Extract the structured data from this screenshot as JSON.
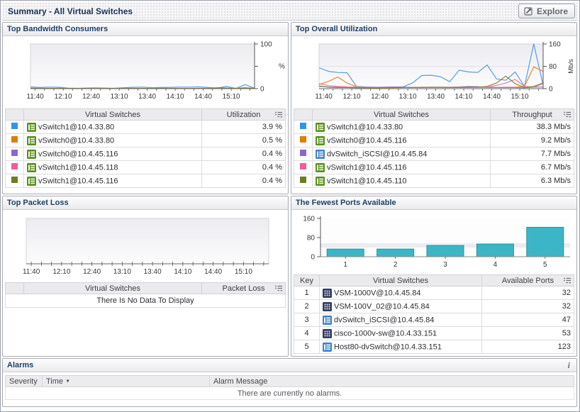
{
  "header": {
    "title": "Summary - All Virtual Switches",
    "explore_label": "Explore"
  },
  "icons": {
    "sort_desc": "▼",
    "info": "i"
  },
  "panels": {
    "bandwidth": {
      "title": "Top Bandwidth Consumers",
      "columns": {
        "name": "Virtual Switches",
        "value": "Utilization"
      },
      "rows": [
        {
          "swatch": "#2e96e4",
          "icon": "vs-green",
          "name": "vSwitch1@10.4.33.80",
          "value": "3.9 %"
        },
        {
          "swatch": "#e07d00",
          "icon": "vs-green",
          "name": "vSwitch0@10.4.33.80",
          "value": "0.5 %"
        },
        {
          "swatch": "#8a68ce",
          "icon": "vs-green",
          "name": "vSwitch0@10.4.45.116",
          "value": "0.4 %"
        },
        {
          "swatch": "#f25d9e",
          "icon": "vs-green",
          "name": "vSwitch1@10.4.45.118",
          "value": "0.4 %"
        },
        {
          "swatch": "#6f7d1f",
          "icon": "vs-green",
          "name": "vSwitch1@10.4.45.116",
          "value": "0.4 %"
        }
      ]
    },
    "utilization": {
      "title": "Top Overall Utilization",
      "columns": {
        "name": "Virtual Switches",
        "value": "Throughput"
      },
      "rows": [
        {
          "swatch": "#2e96e4",
          "icon": "vs-green",
          "name": "vSwitch1@10.4.33.80",
          "value": "38.3 Mb/s"
        },
        {
          "swatch": "#e07d00",
          "icon": "vs-green",
          "name": "vSwitch0@10.4.45.116",
          "value": "9.2 Mb/s"
        },
        {
          "swatch": "#8a68ce",
          "icon": "vs-blue",
          "name": "dvSwitch_iSCSI@10.4.45.84",
          "value": "7.7 Mb/s"
        },
        {
          "swatch": "#f25d9e",
          "icon": "vs-green",
          "name": "vSwitch1@10.4.45.116",
          "value": "6.7 Mb/s"
        },
        {
          "swatch": "#6f7d1f",
          "icon": "vs-green",
          "name": "vSwitch1@10.4.45.110",
          "value": "6.3 Mb/s"
        }
      ]
    },
    "packetloss": {
      "title": "Top Packet Loss",
      "columns": {
        "name": "Virtual Switches",
        "value": "Packet Loss"
      },
      "empty_message": "There Is No Data To Display"
    },
    "ports": {
      "title": "The Fewest Ports Available",
      "columns": {
        "key": "Key",
        "name": "Virtual Switches",
        "value": "Available Ports"
      },
      "rows": [
        {
          "key": "1",
          "icon": "vs-dark",
          "name": "VSM-1000V@10.4.45.84",
          "value": "32"
        },
        {
          "key": "2",
          "icon": "vs-dark",
          "name": "VSM-100V_02@10.4.45.84",
          "value": "32"
        },
        {
          "key": "3",
          "icon": "vs-blue",
          "name": "dvSwitch_iSCSI@10.4.45.84",
          "value": "47"
        },
        {
          "key": "4",
          "icon": "vs-dark",
          "name": "cisco-1000v-sw@10.4.33.151",
          "value": "53"
        },
        {
          "key": "5",
          "icon": "vs-blue",
          "name": "Host80-dvSwitch@10.4.33.151",
          "value": "123"
        }
      ]
    },
    "alarms": {
      "title": "Alarms",
      "columns": {
        "severity": "Severity",
        "time": "Time",
        "message": "Alarm Message"
      },
      "empty_message": "There are currently no alarms."
    }
  },
  "chart_data": [
    {
      "id": "bandwidth",
      "type": "line",
      "title": "Top Bandwidth Consumers",
      "ylabel": "%",
      "ylim": [
        0,
        100
      ],
      "yticks": [
        0,
        50,
        100
      ],
      "ytick_labels": [
        "0",
        "",
        "100"
      ],
      "x_labels": [
        "11:40",
        "12:10",
        "12:40",
        "13:10",
        "13:40",
        "14:10",
        "14:40",
        "15:10"
      ],
      "series": [
        {
          "name": "vSwitch1@10.4.33.80",
          "color": "#4f97e0",
          "values": [
            4,
            2.5,
            3.5,
            3,
            1.2,
            0.8,
            0.8,
            0.8,
            0.8,
            1,
            2,
            3,
            3.5,
            2,
            2.5,
            3,
            3.5,
            3.5,
            4,
            2.5,
            1.2,
            5,
            0.5,
            9,
            1
          ]
        },
        {
          "name": "vSwitch0@10.4.33.80",
          "color": "#e8821e",
          "values": [
            1,
            0.8,
            0.6,
            0.5,
            0.5,
            0.5,
            0.5,
            0.5,
            0.5,
            0.5,
            0.5,
            0.5,
            0.5,
            0.5,
            0.5,
            0.5,
            0.5,
            0.5,
            0.5,
            0.5,
            0.5,
            0.6,
            0.5,
            1.5,
            0.8
          ]
        },
        {
          "name": "vSwitch0@10.4.45.116",
          "color": "#9177cd",
          "values": [
            0.6,
            0.5,
            0.4,
            0.4,
            0.4,
            0.4,
            0.4,
            0.4,
            0.4,
            0.4,
            0.4,
            0.4,
            0.4,
            0.4,
            0.4,
            0.4,
            0.4,
            0.4,
            0.4,
            0.4,
            0.4,
            0.4,
            0.4,
            0.5,
            0.4
          ]
        },
        {
          "name": "vSwitch1@10.4.45.118",
          "color": "#ef6f9e",
          "values": [
            0.8,
            0.5,
            0.4,
            0.4,
            0.4,
            0.4,
            1.5,
            1.8,
            1.4,
            0.4,
            0.4,
            0.4,
            0.4,
            0.4,
            0.4,
            0.4,
            0.4,
            0.4,
            0.4,
            0.4,
            0.4,
            0.8,
            1,
            0.5,
            0.4
          ]
        },
        {
          "name": "vSwitch1@10.4.45.116",
          "color": "#7c8430",
          "values": [
            0.5,
            0.4,
            0.4,
            0.4,
            0.4,
            0.4,
            0.4,
            0.4,
            0.4,
            0.4,
            0.4,
            0.4,
            0.4,
            0.4,
            0.4,
            0.4,
            0.4,
            0.4,
            0.4,
            0.5,
            2,
            1.5,
            0.4,
            2,
            0.5
          ]
        }
      ]
    },
    {
      "id": "utilization",
      "type": "line",
      "title": "Top Overall Utilization",
      "ylabel": "Mb/s",
      "ylim": [
        0,
        160
      ],
      "yticks": [
        0,
        80,
        160
      ],
      "ytick_labels": [
        "0",
        "80",
        "160"
      ],
      "x_labels": [
        "11:40",
        "12:10",
        "12:40",
        "13:10",
        "13:40",
        "14:10",
        "14:40",
        "15:10"
      ],
      "series": [
        {
          "name": "vSwitch1@10.4.33.80",
          "color": "#4f97e0",
          "values": [
            75,
            62,
            58,
            57,
            8,
            6,
            5,
            5,
            6,
            6,
            20,
            47,
            48,
            43,
            25,
            66,
            60,
            58,
            85,
            35,
            30,
            60,
            8,
            160,
            12
          ]
        },
        {
          "name": "vSwitch0@10.4.45.116",
          "color": "#e8821e",
          "values": [
            15,
            26,
            42,
            20,
            6,
            4,
            3,
            3,
            3,
            4,
            4,
            4,
            5,
            4,
            4,
            4,
            4,
            5,
            4,
            4,
            5,
            5,
            8,
            78,
            62
          ]
        },
        {
          "name": "dvSwitch_iSCSI@10.4.45.84",
          "color": "#9177cd",
          "values": [
            8,
            6,
            5,
            4,
            4,
            4,
            4,
            5,
            5,
            5,
            4,
            4,
            5,
            5,
            5,
            6,
            8,
            7,
            5,
            4,
            4,
            4,
            3,
            5,
            6
          ]
        },
        {
          "name": "vSwitch1@10.4.45.116",
          "color": "#ef6f9e",
          "values": [
            18,
            11,
            8,
            6,
            5,
            4,
            4,
            4,
            4,
            4,
            4,
            5,
            5,
            4,
            4,
            5,
            5,
            5,
            5,
            12,
            20,
            33,
            8,
            5,
            18
          ]
        },
        {
          "name": "vSwitch1@10.4.45.110",
          "color": "#7c8430",
          "values": [
            10,
            5,
            4,
            4,
            3,
            3,
            3,
            4,
            4,
            4,
            4,
            4,
            5,
            5,
            4,
            4,
            5,
            5,
            8,
            20,
            45,
            18,
            4,
            8,
            20
          ]
        }
      ]
    },
    {
      "id": "packetloss",
      "type": "line",
      "title": "Top Packet Loss",
      "no_data": true,
      "x_labels": [
        "11:40",
        "12:10",
        "12:40",
        "13:10",
        "13:40",
        "14:10",
        "14:40",
        "15:10"
      ],
      "series": []
    },
    {
      "id": "ports",
      "type": "bar",
      "title": "The Fewest Ports Available",
      "categories": [
        "1",
        "2",
        "3",
        "4",
        "5"
      ],
      "values": [
        32,
        32,
        47,
        53,
        123
      ],
      "ylim": [
        0,
        160
      ],
      "yticks": [
        0,
        80,
        160
      ],
      "ytick_labels": [
        "0",
        "80",
        "160"
      ],
      "bar_color": "#3cb6c6",
      "bar_border": "#27929e"
    }
  ]
}
